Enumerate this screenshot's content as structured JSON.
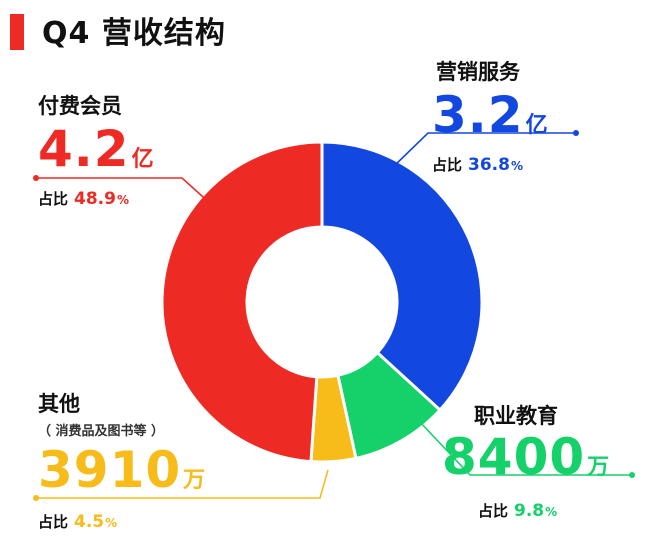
{
  "title": "Q4 营收结构",
  "accent": "#ee2a24",
  "chart_data": {
    "type": "pie",
    "title": "Q4 营收结构",
    "donut": true,
    "labels": [
      "营销服务",
      "职业教育",
      "其他",
      "付费会员"
    ],
    "values": [
      36.8,
      9.8,
      4.5,
      48.9
    ],
    "colors": [
      "#1247e0",
      "#14d16a",
      "#f7bb1a",
      "#ee2a24"
    ]
  },
  "segments": {
    "marketing": {
      "name": "营销服务",
      "value": "3.2",
      "unit": "亿",
      "pct_label": "占比",
      "pct": "36.8",
      "pct_sign": "%",
      "color": "#1247e0"
    },
    "education": {
      "name": "职业教育",
      "value": "8400",
      "unit": "万",
      "pct_label": "占比",
      "pct": "9.8",
      "pct_sign": "%",
      "color": "#14d16a"
    },
    "other": {
      "name": "其他",
      "sub": "（ 消费品及图书等 ）",
      "value": "3910",
      "unit": "万",
      "pct_label": "占比",
      "pct": "4.5",
      "pct_sign": "%",
      "color": "#f7bb1a"
    },
    "membership": {
      "name": "付费会员",
      "value": "4.2",
      "unit": "亿",
      "pct_label": "占比",
      "pct": "48.9",
      "pct_sign": "%",
      "color": "#ee2a24"
    }
  }
}
